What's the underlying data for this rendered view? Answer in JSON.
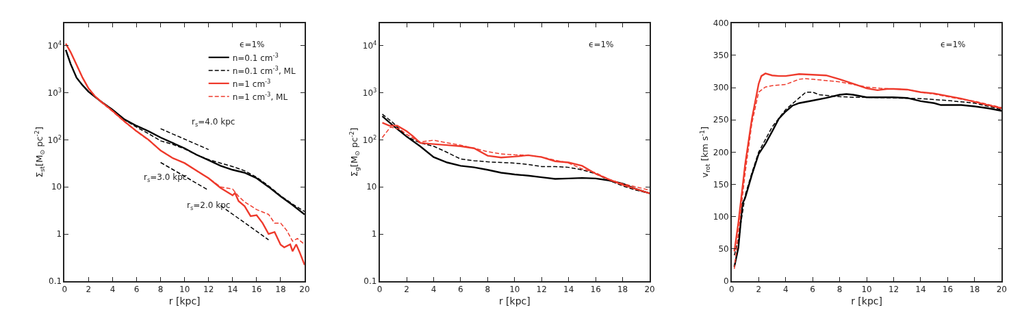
{
  "chart_data": [
    {
      "type": "line",
      "xlabel": "r [kpc]",
      "ylabel": "Σ$_{st}$[M$_{⊙}$ pc$^{-2}$]",
      "log": true,
      "legend": "top right",
      "xlim": [
        0,
        20
      ],
      "xticks": [
        0,
        2,
        4,
        6,
        8,
        10,
        12,
        14,
        16,
        18,
        20
      ],
      "ylim": [
        0.1,
        30000
      ],
      "yticks": [
        0.1,
        1,
        10,
        {
          "value": 100,
          "label": "10$^{2}$"
        },
        {
          "value": 1000,
          "label": "10$^{3}$"
        },
        {
          "value": 10000,
          "label": "10$^{4}$"
        }
      ],
      "annotations": [
        "ϵ=1%",
        "r$_{s}$=4.0 kpc",
        "r$_{s}$=3.0 kpc",
        "r$_{s}$=2.0 kpc"
      ],
      "x": [
        0.1,
        0.5,
        1,
        1.5,
        2,
        3,
        4,
        5,
        6,
        7,
        8,
        9,
        10,
        11,
        12,
        13,
        14,
        15,
        16,
        17,
        18,
        19,
        20
      ],
      "series": [
        {
          "name": "n=0.1 cm$^{-3}$",
          "color": "#000000",
          "line_style": "solid",
          "values": [
            8100,
            4100,
            2080,
            1440,
            1050,
            660,
            435,
            270,
            198,
            152,
            112,
            86,
            66,
            48,
            37,
            28,
            23,
            20,
            15.3,
            10,
            6.3,
            4.1,
            2.6
          ]
        },
        {
          "name": "n=0.1 cm$^{-3}$, ML",
          "color": "#000000",
          "line_style": "dashed",
          "values": [
            8100,
            4100,
            2080,
            1440,
            1050,
            660,
            435,
            265,
            185,
            135,
            95,
            80,
            64,
            48,
            38,
            32,
            27,
            22,
            16,
            10.5,
            6.5,
            4.3,
            3.0
          ]
        },
        {
          "name": "n=1 cm$^{-3}$",
          "color": "#ee3a2c",
          "line_style": "solid",
          "x": [
            0.1,
            0.5,
            1,
            1.5,
            2,
            2.5,
            3,
            4,
            5,
            6,
            7,
            8,
            9,
            10,
            11,
            12,
            13,
            14,
            14.2,
            14.5,
            15,
            15.5,
            16,
            16.5,
            17,
            17.5,
            18,
            18.3,
            18.8,
            19,
            19.3,
            19.6,
            20
          ],
          "values": [
            11000,
            7300,
            3900,
            2080,
            1230,
            860,
            660,
            410,
            245,
            152,
            100,
            59,
            41,
            32,
            22,
            15.3,
            9.5,
            6.6,
            7.4,
            5.0,
            3.9,
            2.4,
            2.5,
            1.7,
            1.0,
            1.1,
            0.59,
            0.52,
            0.6,
            0.43,
            0.6,
            0.4,
            0.22
          ]
        },
        {
          "name": "n=1 cm$^{-3}$, ML",
          "color": "#ee3a2c",
          "line_style": "dashed",
          "x": [
            0.1,
            0.5,
            1,
            1.5,
            2,
            2.5,
            3,
            4,
            5,
            6,
            7,
            8,
            9,
            10,
            11,
            12,
            13,
            14,
            14.5,
            15,
            16,
            17,
            17.5,
            18,
            18.5,
            19,
            19.4,
            20
          ],
          "values": [
            11000,
            7300,
            3900,
            2080,
            1230,
            860,
            640,
            400,
            240,
            150,
            98,
            60,
            41,
            32,
            22,
            15.3,
            10,
            9,
            6.3,
            4.8,
            3.3,
            2.6,
            1.7,
            1.7,
            1.2,
            0.7,
            0.8,
            0.6
          ]
        },
        {
          "color": "#000000",
          "line_style": "dashed",
          "x": [
            8,
            12
          ],
          "values": [
            172,
            62
          ]
        },
        {
          "color": "#000000",
          "line_style": "dashed",
          "x": [
            8,
            12
          ],
          "values": [
            33,
            8.5
          ]
        },
        {
          "color": "#000000",
          "line_style": "dashed",
          "x": [
            13,
            17
          ],
          "values": [
            4.0,
            0.75
          ]
        }
      ]
    },
    {
      "type": "line",
      "xlabel": "r [kpc]",
      "ylabel": "Σ$_{g}$[M$_{⊙}$ pc$^{-2}$]",
      "log": true,
      "xlim": [
        0,
        20
      ],
      "xticks": [
        0,
        2,
        4,
        6,
        8,
        10,
        12,
        14,
        16,
        18,
        20
      ],
      "ylim": [
        0.1,
        30000
      ],
      "yticks": [
        0.1,
        1,
        10,
        {
          "value": 100,
          "label": "10$^{2}$"
        },
        {
          "value": 1000,
          "label": "10$^{3}$"
        },
        {
          "value": 10000,
          "label": "10$^{4}$"
        }
      ],
      "annotations": [
        "ϵ=1%"
      ],
      "x": [
        0.2,
        1,
        2,
        3,
        4,
        5,
        6,
        7,
        8,
        9,
        10,
        11,
        12,
        13,
        14,
        15,
        16,
        17,
        18,
        19,
        20
      ],
      "series": [
        {
          "color": "#000000",
          "line_style": "solid",
          "values": [
            316,
            200,
            117,
            73,
            43,
            33,
            28,
            26,
            23,
            20,
            18.4,
            17.3,
            16,
            14.8,
            15.1,
            15.5,
            15.1,
            13.7,
            11.7,
            9.0,
            7.3
          ]
        },
        {
          "color": "#000000",
          "line_style": "dashed",
          "values": [
            350,
            230,
            117,
            86,
            73,
            54,
            39,
            36,
            34,
            33,
            32,
            30,
            27,
            27,
            26,
            23,
            19,
            13.7,
            10.5,
            8.5,
            7.3
          ]
        },
        {
          "color": "#ee3a2c",
          "line_style": "solid",
          "x": [
            0.2,
            0.7,
            1.3,
            2,
            2.5,
            3,
            4,
            5,
            6,
            7,
            8,
            9,
            10,
            11,
            12,
            13,
            14,
            15,
            16,
            17,
            18,
            19,
            20
          ],
          "values": [
            230,
            200,
            200,
            152,
            117,
            86,
            81,
            77,
            73,
            66,
            46,
            42,
            44,
            47,
            43,
            35,
            33,
            28,
            19,
            14.4,
            11.1,
            9.0,
            7.3
          ]
        },
        {
          "color": "#ee3a2c",
          "line_style": "dashed",
          "x": [
            0.2,
            0.8,
            1.5,
            2,
            3,
            4,
            5,
            6,
            7,
            8,
            9,
            10,
            11,
            12,
            13,
            14,
            15,
            16,
            17,
            18,
            19,
            20
          ],
          "values": [
            112,
            186,
            168,
            130,
            90,
            98,
            86,
            77,
            66,
            56,
            50,
            48,
            47,
            43,
            37,
            32,
            24,
            20,
            14.4,
            11.7,
            10,
            8.5
          ]
        }
      ]
    },
    {
      "type": "line",
      "xlabel": "r [kpc]",
      "ylabel": "v$_{rot}$ [km s$^{-1}$]",
      "xlim": [
        0,
        20
      ],
      "xticks": [
        0,
        2,
        4,
        6,
        8,
        10,
        12,
        14,
        16,
        18,
        20
      ],
      "ylim": [
        0,
        400
      ],
      "yticks": [
        0,
        50,
        100,
        150,
        200,
        250,
        300,
        350,
        400
      ],
      "annotations": [
        "ϵ=1%"
      ],
      "series": [
        {
          "color": "#000000",
          "line_style": "solid",
          "x": [
            0.2,
            0.5,
            0.8,
            1,
            1.5,
            2,
            2.5,
            3,
            3.5,
            4,
            4.5,
            5,
            6,
            7,
            8,
            8.5,
            9,
            10,
            11,
            12,
            13,
            14,
            15,
            15.5,
            16,
            17,
            18,
            19,
            20
          ],
          "values": [
            22,
            52,
            120,
            129,
            165,
            197,
            213,
            232,
            252,
            263,
            272,
            276,
            280,
            284,
            289,
            290,
            289,
            285,
            285,
            285,
            284,
            279,
            276,
            273,
            273,
            273,
            271,
            268,
            264
          ]
        },
        {
          "color": "#000000",
          "line_style": "dashed",
          "x": [
            0.2,
            0.5,
            1,
            1.5,
            2,
            3,
            4,
            5,
            5.5,
            6,
            6.5,
            7,
            8,
            9,
            10,
            12,
            14,
            16,
            18,
            20
          ],
          "values": [
            40,
            65,
            133,
            168,
            200,
            239,
            266,
            284,
            293,
            293,
            289,
            288,
            286,
            285,
            285,
            284,
            283,
            280,
            276,
            266
          ]
        },
        {
          "color": "#ee3a2c",
          "line_style": "solid",
          "x": [
            0.2,
            0.5,
            1,
            1.5,
            2,
            2.2,
            2.5,
            3,
            3.5,
            4,
            5,
            6,
            7,
            8,
            9,
            10,
            10.8,
            11.5,
            12,
            13,
            14,
            15,
            16,
            17,
            18,
            19,
            20
          ],
          "values": [
            46,
            91,
            181,
            252,
            306,
            318,
            322,
            319,
            318,
            318,
            321,
            320,
            319,
            313,
            306,
            299,
            296,
            298,
            298,
            297,
            293,
            291,
            287,
            283,
            278,
            273,
            268
          ]
        },
        {
          "color": "#ee3a2c",
          "line_style": "dashed",
          "x": [
            0.2,
            0.5,
            1,
            1.5,
            2,
            2.5,
            3,
            4,
            5,
            5.5,
            6,
            7,
            8,
            9,
            10,
            11,
            12,
            13,
            14,
            15,
            16,
            17,
            18,
            19,
            20
          ],
          "values": [
            19,
            75,
            168,
            245,
            293,
            301,
            303,
            305,
            313,
            314,
            313,
            311,
            309,
            305,
            301,
            299,
            298,
            297,
            293,
            290,
            286,
            282,
            279,
            274,
            269
          ]
        }
      ]
    }
  ]
}
